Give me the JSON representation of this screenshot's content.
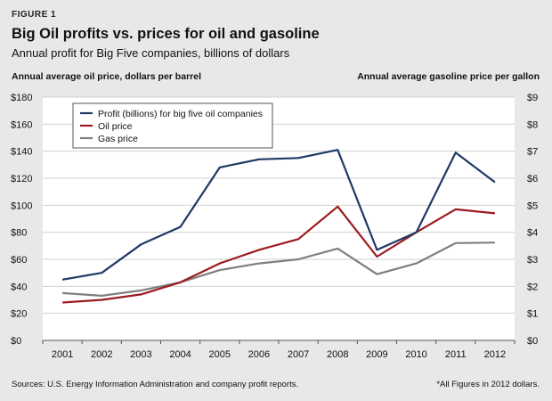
{
  "figure_label": "FIGURE 1",
  "title": "Big Oil profits vs. prices for oil and gasoline",
  "subtitle": "Annual profit for Big Five companies, billions of dollars",
  "axis_left_title": "Annual average oil price, dollars per barrel",
  "axis_right_title": "Annual average gasoline price per gallon",
  "source": "Sources: U.S. Energy Information Administration and company profit reports.",
  "footnote": "*All Figures in 2012 dollars.",
  "chart_data": {
    "type": "line",
    "x": [
      "2001",
      "2002",
      "2003",
      "2004",
      "2005",
      "2006",
      "2007",
      "2008",
      "2009",
      "2010",
      "2011",
      "2012"
    ],
    "y_left": {
      "ylim": [
        0,
        180
      ],
      "ticks": [
        "$0",
        "$20",
        "$40",
        "$60",
        "$80",
        "$100",
        "$120",
        "$140",
        "$160",
        "$180"
      ]
    },
    "y_right": {
      "ylim": [
        0,
        9
      ],
      "ticks": [
        "$0",
        "$1",
        "$2",
        "$3",
        "$4",
        "$5",
        "$6",
        "$7",
        "$8",
        "$9"
      ]
    },
    "series": [
      {
        "name": "Profit (billions) for big five oil companies",
        "color": "#1f3864",
        "axis": "left",
        "values": [
          45,
          50,
          71,
          84,
          128,
          134,
          135,
          141,
          67,
          80,
          139,
          117
        ]
      },
      {
        "name": "Oil price",
        "color": "#9b1b1f",
        "axis": "left",
        "values": [
          28,
          30,
          34,
          43,
          57,
          67,
          75,
          99,
          62,
          80,
          97,
          94
        ]
      },
      {
        "name": "Gas price",
        "color": "#7f7f7f",
        "axis": "right",
        "values": [
          1.75,
          1.65,
          1.85,
          2.15,
          2.6,
          2.85,
          3.0,
          3.4,
          2.45,
          2.85,
          3.6,
          3.62
        ]
      }
    ],
    "grid": true,
    "legend_position": "top-left"
  }
}
